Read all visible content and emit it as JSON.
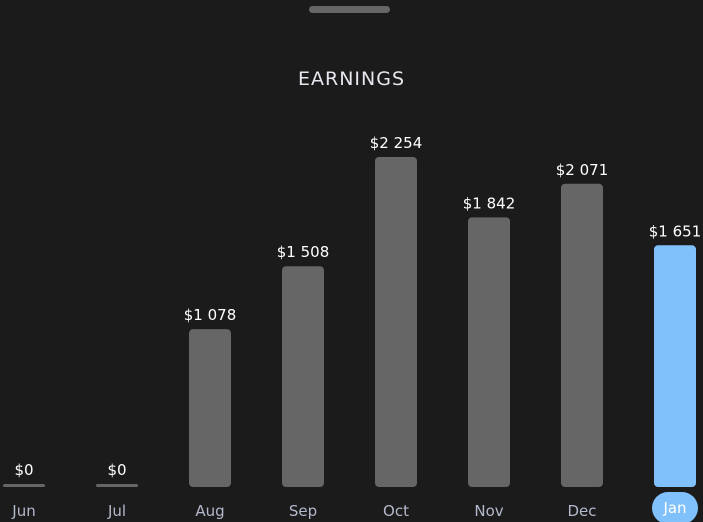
{
  "chart_data": {
    "type": "bar",
    "title": "EARNINGS",
    "categories": [
      "Jun",
      "Jul",
      "Aug",
      "Sep",
      "Oct",
      "Nov",
      "Dec",
      "Jan"
    ],
    "values": [
      0,
      0,
      1078,
      1508,
      2254,
      1842,
      2071,
      1651
    ],
    "value_labels": [
      "$0",
      "$0",
      "$1 078",
      "$1 508",
      "$2 254",
      "$1 842",
      "$2 071",
      "$1 651"
    ],
    "selected": "Jan",
    "xlabel": "",
    "ylabel": "",
    "grid": false,
    "colors": {
      "bar": "#666666",
      "selected_bar": "#80c1fb",
      "background": "#1b1b1b",
      "label": "#ffffff",
      "month": "#b4b8cc"
    }
  }
}
